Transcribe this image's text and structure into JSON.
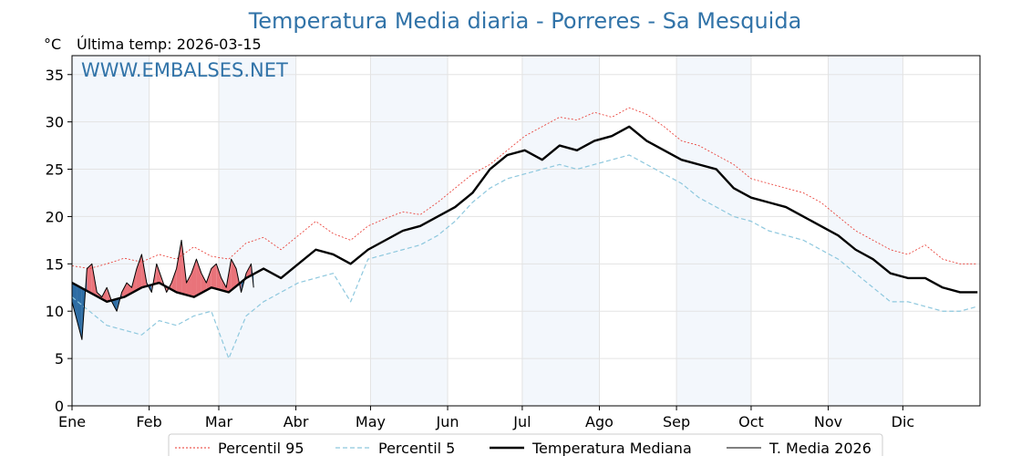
{
  "chart_data": {
    "type": "line",
    "title": "Temperatura Media diaria - Porreres - Sa Mesquida",
    "unit_label": "°C",
    "last_temp_label": "Última temp: 2026-03-15",
    "watermark": "WWW.EMBALSES.NET",
    "ylim": [
      0,
      37
    ],
    "yticks": [
      0,
      5,
      10,
      15,
      20,
      25,
      30,
      35
    ],
    "x_domain_days": [
      1,
      366
    ],
    "months": [
      "Ene",
      "Feb",
      "Mar",
      "Abr",
      "May",
      "Jun",
      "Jul",
      "Ago",
      "Sep",
      "Oct",
      "Nov",
      "Dic"
    ],
    "month_start_days": [
      1,
      32,
      60,
      91,
      121,
      152,
      182,
      213,
      244,
      274,
      305,
      335
    ],
    "grid": true,
    "legend_position": "bottom",
    "colors": {
      "p95": "#e8332b",
      "p5": "#8ec8de",
      "median": "#000000",
      "current": "#000000",
      "above": "#e9737a",
      "below": "#2e6da4",
      "band": "#f3f7fc",
      "title": "#3173a8"
    },
    "series": [
      {
        "name": "Percentil 95",
        "style": "dotted",
        "x": [
          1,
          8,
          15,
          22,
          29,
          36,
          43,
          50,
          57,
          64,
          71,
          78,
          85,
          92,
          99,
          106,
          113,
          120,
          127,
          134,
          141,
          148,
          155,
          162,
          169,
          176,
          183,
          190,
          197,
          204,
          211,
          218,
          225,
          232,
          239,
          246,
          253,
          260,
          267,
          274,
          281,
          288,
          295,
          302,
          309,
          316,
          323,
          330,
          337,
          344,
          351,
          358,
          365
        ],
        "values": [
          14.8,
          14.5,
          15.0,
          15.6,
          15.2,
          16.0,
          15.5,
          16.8,
          15.8,
          15.5,
          17.2,
          17.8,
          16.5,
          18.0,
          19.5,
          18.2,
          17.5,
          19.0,
          19.8,
          20.5,
          20.2,
          21.5,
          23.0,
          24.5,
          25.5,
          27.0,
          28.5,
          29.5,
          30.5,
          30.2,
          31.0,
          30.5,
          31.5,
          30.8,
          29.5,
          28.0,
          27.5,
          26.5,
          25.5,
          24.0,
          23.5,
          23.0,
          22.5,
          21.5,
          20.0,
          18.5,
          17.5,
          16.5,
          16.0,
          17.0,
          15.5,
          15.0,
          15.0
        ]
      },
      {
        "name": "Percentil 5",
        "style": "dashed",
        "x": [
          1,
          8,
          15,
          22,
          29,
          36,
          43,
          50,
          57,
          64,
          71,
          78,
          85,
          92,
          99,
          106,
          113,
          120,
          127,
          134,
          141,
          148,
          155,
          162,
          169,
          176,
          183,
          190,
          197,
          204,
          211,
          218,
          225,
          232,
          239,
          246,
          253,
          260,
          267,
          274,
          281,
          288,
          295,
          302,
          309,
          316,
          323,
          330,
          337,
          344,
          351,
          358,
          365
        ],
        "values": [
          11.5,
          10.0,
          8.5,
          8.0,
          7.5,
          9.0,
          8.5,
          9.5,
          10.0,
          5.0,
          9.5,
          11.0,
          12.0,
          13.0,
          13.5,
          14.0,
          11.0,
          15.5,
          16.0,
          16.5,
          17.0,
          18.0,
          19.5,
          21.5,
          23.0,
          24.0,
          24.5,
          25.0,
          25.5,
          25.0,
          25.5,
          26.0,
          26.5,
          25.5,
          24.5,
          23.5,
          22.0,
          21.0,
          20.0,
          19.5,
          18.5,
          18.0,
          17.5,
          16.5,
          15.5,
          14.0,
          12.5,
          11.0,
          11.0,
          10.5,
          10.0,
          10.0,
          10.5
        ]
      },
      {
        "name": "Temperatura Mediana",
        "style": "bold",
        "x": [
          1,
          8,
          15,
          22,
          29,
          36,
          43,
          50,
          57,
          64,
          71,
          78,
          85,
          92,
          99,
          106,
          113,
          120,
          127,
          134,
          141,
          148,
          155,
          162,
          169,
          176,
          183,
          190,
          197,
          204,
          211,
          218,
          225,
          232,
          239,
          246,
          253,
          260,
          267,
          274,
          281,
          288,
          295,
          302,
          309,
          316,
          323,
          330,
          337,
          344,
          351,
          358,
          365
        ],
        "values": [
          13.0,
          12.0,
          11.0,
          11.5,
          12.5,
          13.0,
          12.0,
          11.5,
          12.5,
          12.0,
          13.5,
          14.5,
          13.5,
          15.0,
          16.5,
          16.0,
          15.0,
          16.5,
          17.5,
          18.5,
          19.0,
          20.0,
          21.0,
          22.5,
          25.0,
          26.5,
          27.0,
          26.0,
          27.5,
          27.0,
          28.0,
          28.5,
          29.5,
          28.0,
          27.0,
          26.0,
          25.5,
          25.0,
          23.0,
          22.0,
          21.5,
          21.0,
          20.0,
          19.0,
          18.0,
          16.5,
          15.5,
          14.0,
          13.5,
          13.5,
          12.5,
          12.0,
          12.0
        ]
      },
      {
        "name": "T. Media 2026",
        "style": "thin",
        "x": [
          1,
          3,
          5,
          7,
          9,
          11,
          13,
          15,
          17,
          19,
          21,
          23,
          25,
          27,
          29,
          31,
          33,
          35,
          37,
          39,
          41,
          43,
          45,
          47,
          49,
          51,
          53,
          55,
          57,
          59,
          61,
          63,
          65,
          67,
          69,
          71,
          73,
          74
        ],
        "values": [
          11.0,
          9.0,
          7.0,
          14.5,
          15.0,
          12.0,
          11.5,
          12.5,
          11.0,
          10.0,
          12.0,
          13.0,
          12.5,
          14.5,
          16.0,
          13.0,
          12.0,
          15.0,
          13.5,
          12.0,
          13.0,
          14.5,
          17.5,
          13.0,
          14.0,
          15.5,
          14.0,
          13.0,
          14.5,
          15.0,
          13.5,
          12.5,
          15.5,
          14.5,
          12.0,
          14.0,
          15.0,
          12.5
        ]
      }
    ]
  }
}
